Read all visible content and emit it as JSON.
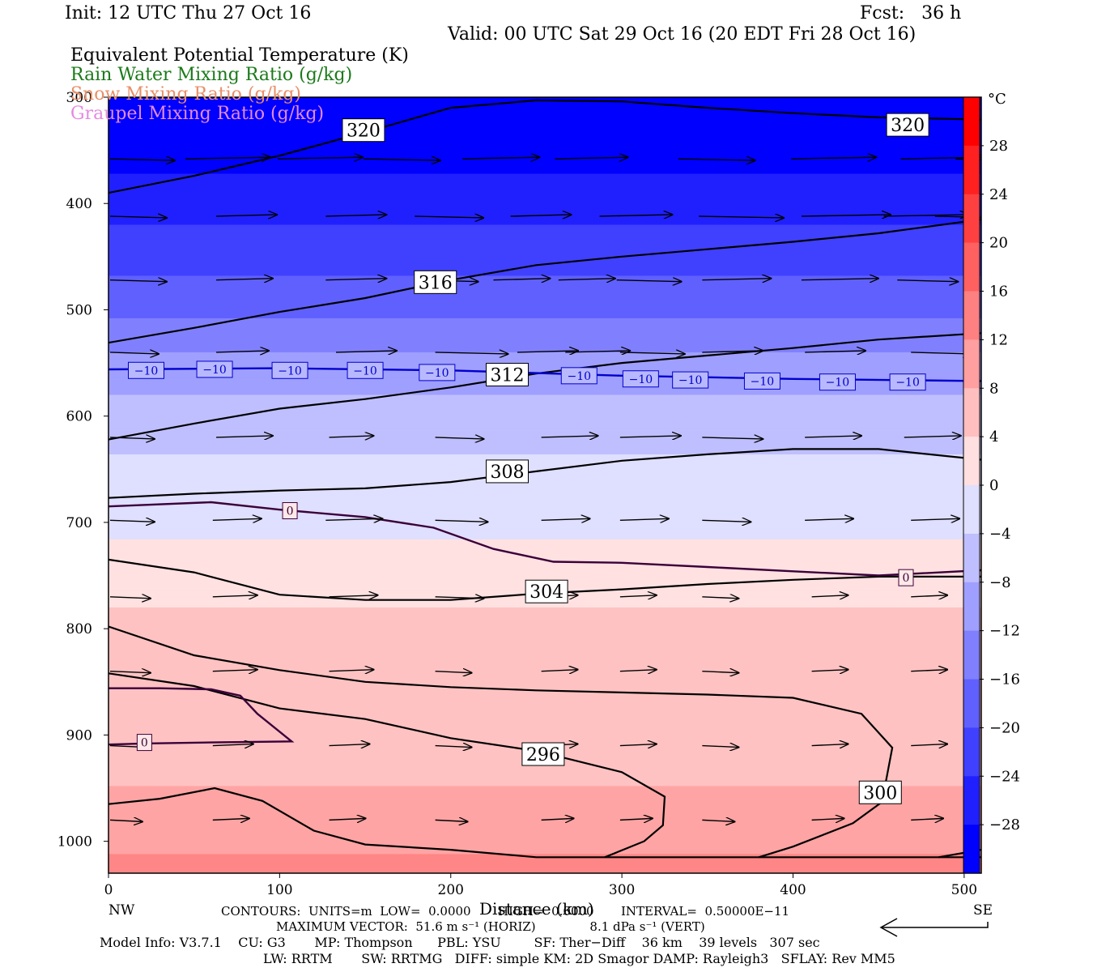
{
  "header": {
    "init": "Init: 12 UTC Thu 27 Oct 16",
    "fcst": "Fcst:   36 h",
    "valid": "Valid: 00 UTC Sat 29 Oct 16 (20 EDT Fri 28 Oct 16)"
  },
  "legend": [
    {
      "text": "Equivalent Potential Temperature (K)",
      "color": "#000000"
    },
    {
      "text": "Rain Water Mixing Ratio (g/kg)",
      "color": "#1a7a1a"
    },
    {
      "text": "Snow Mixing Ratio (g/kg)",
      "color": "#e8906a"
    },
    {
      "text": "Graupel Mixing Ratio (g/kg)",
      "color": "#e58ae0"
    }
  ],
  "chart_data": {
    "type": "heatmap",
    "description_fields": "vertical cross-section: filled temperature, theta-e contours, wind vectors",
    "xlabel": "Distance (km)",
    "xlim": [
      0,
      510
    ],
    "x_ticks": [
      0,
      100,
      200,
      300,
      400,
      500
    ],
    "x_end_labels": {
      "left": "NW",
      "right": "SE"
    },
    "ylim": [
      1030,
      300
    ],
    "y_ticks": [
      300,
      400,
      500,
      600,
      700,
      800,
      900,
      1000
    ],
    "y_tick_labels": [
      "300",
      "400",
      "500",
      "600",
      "700",
      "800",
      "900",
      "1000"
    ],
    "colorbar": {
      "unit": "°C",
      "range": [
        -32,
        32
      ],
      "step": 4,
      "labels": [
        "28",
        "24",
        "20",
        "16",
        "12",
        "8",
        "4",
        "0",
        "−4",
        "−8",
        "−12",
        "−16",
        "−20",
        "−24",
        "−28"
      ],
      "cold_color": "#0000ff",
      "warm_color": "#ff0000"
    },
    "theta_e_contours": [
      {
        "value": "320",
        "points": [
          [
            0,
            390
          ],
          [
            50,
            374
          ],
          [
            100,
            355
          ],
          [
            150,
            333
          ],
          [
            200,
            310
          ],
          [
            250,
            303
          ],
          [
            300,
            304
          ],
          [
            350,
            310
          ],
          [
            400,
            315
          ],
          [
            450,
            319
          ],
          [
            510,
            321
          ]
        ],
        "labels": [
          [
            149,
            331
          ],
          [
            467,
            326
          ]
        ]
      },
      {
        "value": "316",
        "points": [
          [
            0,
            531
          ],
          [
            50,
            517
          ],
          [
            100,
            502
          ],
          [
            150,
            489
          ],
          [
            200,
            472
          ],
          [
            250,
            458
          ],
          [
            300,
            450
          ],
          [
            350,
            443
          ],
          [
            400,
            436
          ],
          [
            450,
            428
          ],
          [
            510,
            415
          ]
        ],
        "labels": [
          [
            191,
            474
          ]
        ]
      },
      {
        "value": "312",
        "points": [
          [
            0,
            622
          ],
          [
            50,
            607
          ],
          [
            100,
            593
          ],
          [
            150,
            584
          ],
          [
            200,
            573
          ],
          [
            250,
            560
          ],
          [
            300,
            550
          ],
          [
            350,
            543
          ],
          [
            400,
            536
          ],
          [
            450,
            528
          ],
          [
            510,
            522
          ]
        ],
        "labels": [
          [
            233,
            561
          ]
        ]
      },
      {
        "value": "308",
        "points": [
          [
            0,
            677
          ],
          [
            50,
            673
          ],
          [
            100,
            670
          ],
          [
            150,
            668
          ],
          [
            200,
            662
          ],
          [
            250,
            652
          ],
          [
            300,
            642
          ],
          [
            350,
            636
          ],
          [
            400,
            631
          ],
          [
            450,
            631
          ],
          [
            510,
            641
          ]
        ],
        "labels": [
          [
            233,
            652
          ]
        ]
      },
      {
        "value": "304",
        "points": [
          [
            0,
            735
          ],
          [
            50,
            747
          ],
          [
            100,
            768
          ],
          [
            150,
            773
          ],
          [
            200,
            773
          ],
          [
            250,
            767
          ],
          [
            300,
            763
          ],
          [
            350,
            758
          ],
          [
            400,
            754
          ],
          [
            450,
            751
          ],
          [
            510,
            751
          ]
        ],
        "labels": [
          [
            256,
            765
          ]
        ]
      },
      {
        "value": "296",
        "points": [
          [
            0,
            842
          ],
          [
            50,
            854
          ],
          [
            100,
            875
          ],
          [
            150,
            885
          ],
          [
            200,
            903
          ],
          [
            250,
            915
          ],
          [
            300,
            935
          ],
          [
            325,
            958
          ],
          [
            324,
            985
          ],
          [
            313,
            1000
          ],
          [
            290,
            1015
          ]
        ],
        "labels": [
          [
            254,
            918
          ]
        ]
      },
      {
        "value": "300",
        "points": [
          [
            0,
            798
          ],
          [
            50,
            825
          ],
          [
            100,
            839
          ],
          [
            150,
            850
          ],
          [
            200,
            855
          ],
          [
            250,
            858
          ],
          [
            300,
            860
          ],
          [
            350,
            862
          ],
          [
            400,
            865
          ],
          [
            440,
            880
          ],
          [
            458,
            912
          ],
          [
            452,
            963
          ],
          [
            435,
            983
          ],
          [
            400,
            1005
          ],
          [
            380,
            1015
          ]
        ],
        "labels": [
          [
            451,
            954
          ]
        ]
      },
      {
        "value": "",
        "points": [
          [
            0,
            965
          ],
          [
            30,
            960
          ],
          [
            62,
            950
          ],
          [
            90,
            962
          ],
          [
            120,
            990
          ],
          [
            150,
            1003
          ],
          [
            200,
            1008
          ],
          [
            250,
            1015
          ],
          [
            300,
            1015
          ],
          [
            400,
            1015
          ],
          [
            510,
            1015
          ]
        ],
        "labels": []
      },
      {
        "value": "",
        "points": [
          [
            485,
            1015
          ],
          [
            510,
            1008
          ]
        ],
        "labels": []
      }
    ],
    "temperature_contours": [
      {
        "value": "−10",
        "color": "#0000cc",
        "points": [
          [
            0,
            556
          ],
          [
            100,
            555
          ],
          [
            200,
            557
          ],
          [
            300,
            562
          ],
          [
            400,
            565
          ],
          [
            510,
            567
          ]
        ],
        "labels": [
          [
            22,
            557
          ],
          [
            62,
            556
          ],
          [
            106,
            557
          ],
          [
            150,
            557
          ],
          [
            192,
            559
          ],
          [
            275,
            562
          ],
          [
            311,
            565
          ],
          [
            340,
            566
          ],
          [
            382,
            567
          ],
          [
            426,
            568
          ],
          [
            467,
            568
          ]
        ]
      },
      {
        "value": "0",
        "color": "#3a003a",
        "points": [
          [
            0,
            685
          ],
          [
            60,
            681
          ],
          [
            100,
            688
          ],
          [
            150,
            695
          ],
          [
            190,
            705
          ],
          [
            225,
            725
          ],
          [
            260,
            737
          ],
          [
            300,
            738
          ],
          [
            350,
            742
          ],
          [
            400,
            746
          ],
          [
            450,
            750
          ],
          [
            510,
            745
          ]
        ],
        "labels": [
          [
            106,
            689
          ],
          [
            466,
            752
          ]
        ]
      },
      {
        "value": "0",
        "color": "#3a003a",
        "points": [
          [
            0,
            909
          ],
          [
            20,
            908
          ],
          [
            60,
            907
          ],
          [
            107,
            906
          ],
          [
            87,
            880
          ],
          [
            77,
            863
          ],
          [
            60,
            857
          ],
          [
            30,
            856
          ],
          [
            0,
            856
          ]
        ],
        "labels": [
          [
            21,
            907
          ]
        ]
      }
    ],
    "wind_vectors": [
      {
        "row_p": 358,
        "xs": [
          0,
          44,
          98,
          148,
          206,
          260,
          332,
          398,
          462,
          494
        ],
        "lens": [
          80,
          105,
          105,
          95,
          95,
          90,
          95,
          105,
          105,
          55
        ]
      },
      {
        "row_p": 412,
        "xs": [
          0,
          62,
          126,
          178,
          234,
          286,
          344,
          404,
          452,
          482
        ],
        "lens": [
          70,
          75,
          75,
          85,
          75,
          90,
          105,
          110,
          105,
          85
        ]
      },
      {
        "row_p": 472,
        "xs": [
          0,
          62,
          126,
          182,
          224,
          262,
          296,
          346,
          404,
          460
        ],
        "lens": [
          70,
          70,
          75,
          70,
          70,
          70,
          80,
          85,
          95,
          75
        ]
      },
      {
        "row_p": 540,
        "xs": [
          0,
          62,
          132,
          190,
          238,
          266,
          298,
          346,
          406,
          468
        ],
        "lens": [
          60,
          65,
          75,
          90,
          75,
          80,
          80,
          75,
          75,
          75
        ]
      },
      {
        "row_p": 620,
        "xs": [
          0,
          62,
          128,
          190,
          252,
          298,
          346,
          406,
          464
        ],
        "lens": [
          55,
          70,
          55,
          60,
          70,
          75,
          75,
          70,
          70
        ]
      },
      {
        "row_p": 698,
        "xs": [
          0,
          60,
          126,
          190,
          252,
          298,
          346,
          406,
          468
        ],
        "lens": [
          55,
          60,
          70,
          65,
          60,
          60,
          60,
          60,
          60
        ]
      },
      {
        "row_p": 770,
        "xs": [
          0,
          60,
          128,
          190,
          252,
          298,
          346,
          410,
          468
        ],
        "lens": [
          50,
          55,
          60,
          60,
          45,
          45,
          45,
          45,
          45
        ]
      },
      {
        "row_p": 840,
        "xs": [
          0,
          60,
          128,
          190,
          252,
          298,
          346,
          410,
          468
        ],
        "lens": [
          50,
          55,
          55,
          45,
          45,
          45,
          45,
          45,
          45
        ]
      },
      {
        "row_p": 910,
        "xs": [
          0,
          60,
          128,
          190,
          252,
          298,
          346,
          410,
          468
        ],
        "lens": [
          45,
          50,
          50,
          45,
          45,
          45,
          45,
          45,
          45
        ]
      },
      {
        "row_p": 980,
        "xs": [
          0,
          60,
          128,
          190,
          252,
          298,
          346,
          410,
          468
        ],
        "lens": [
          40,
          45,
          45,
          40,
          40,
          40,
          40,
          40,
          40
        ]
      }
    ]
  },
  "footer": {
    "contours": "CONTOURS:  UNITS=m  LOW=  0.0000       HIGH=  0.0000       INTERVAL=  0.50000E−11",
    "max_vector": "MAXIMUM VECTOR:  51.6 m s⁻¹ (HORIZ)              8.1 dPa s⁻¹ (VERT)",
    "model_info_1": "Model Info: V3.7.1    CU: G3       MP: Thompson      PBL: YSU        SF: Ther−Diff    36 km    39 levels   307 sec",
    "model_info_2": "LW: RRTM       SW: RRTMG   DIFF: simple KM: 2D Smagor DAMP: Rayleigh3   SFLAY: Rev MM5"
  }
}
